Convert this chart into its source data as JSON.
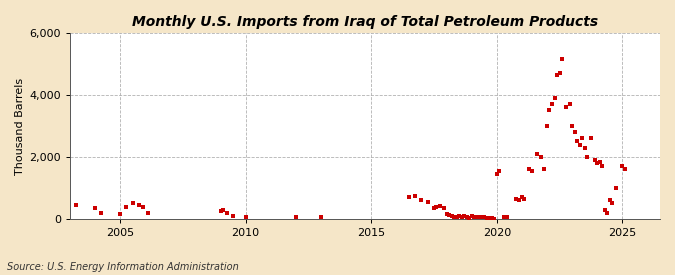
{
  "title": "Monthly U.S. Imports from Iraq of Total Petroleum Products",
  "ylabel": "Thousand Barrels",
  "source": "Source: U.S. Energy Information Administration",
  "background_color": "#f5e6c8",
  "plot_background_color": "#ffffff",
  "marker_color": "#cc0000",
  "xlim": [
    2003.0,
    2026.5
  ],
  "ylim": [
    0,
    6000
  ],
  "yticks": [
    0,
    2000,
    4000,
    6000
  ],
  "xticks": [
    2005,
    2010,
    2015,
    2020,
    2025
  ],
  "data_points": [
    [
      2003.25,
      450
    ],
    [
      2004.0,
      350
    ],
    [
      2004.25,
      200
    ],
    [
      2005.0,
      150
    ],
    [
      2005.25,
      400
    ],
    [
      2005.5,
      500
    ],
    [
      2005.75,
      450
    ],
    [
      2005.9,
      380
    ],
    [
      2006.1,
      200
    ],
    [
      2009.0,
      250
    ],
    [
      2009.1,
      300
    ],
    [
      2009.25,
      200
    ],
    [
      2009.5,
      100
    ],
    [
      2010.0,
      50
    ],
    [
      2012.0,
      50
    ],
    [
      2013.0,
      50
    ],
    [
      2016.5,
      700
    ],
    [
      2016.75,
      750
    ],
    [
      2017.0,
      600
    ],
    [
      2017.25,
      550
    ],
    [
      2017.5,
      350
    ],
    [
      2017.6,
      380
    ],
    [
      2017.75,
      420
    ],
    [
      2017.9,
      350
    ],
    [
      2018.0,
      150
    ],
    [
      2018.1,
      120
    ],
    [
      2018.2,
      80
    ],
    [
      2018.3,
      60
    ],
    [
      2018.4,
      50
    ],
    [
      2018.5,
      80
    ],
    [
      2018.6,
      50
    ],
    [
      2018.7,
      80
    ],
    [
      2018.8,
      50
    ],
    [
      2018.9,
      30
    ],
    [
      2019.0,
      80
    ],
    [
      2019.1,
      50
    ],
    [
      2019.2,
      50
    ],
    [
      2019.3,
      70
    ],
    [
      2019.4,
      60
    ],
    [
      2019.5,
      50
    ],
    [
      2019.6,
      40
    ],
    [
      2019.7,
      30
    ],
    [
      2019.8,
      20
    ],
    [
      2019.9,
      10
    ],
    [
      2020.0,
      1450
    ],
    [
      2020.08,
      1550
    ],
    [
      2020.3,
      50
    ],
    [
      2020.4,
      60
    ],
    [
      2020.75,
      650
    ],
    [
      2020.9,
      600
    ],
    [
      2021.0,
      700
    ],
    [
      2021.1,
      650
    ],
    [
      2021.3,
      1600
    ],
    [
      2021.4,
      1550
    ],
    [
      2021.6,
      2100
    ],
    [
      2021.75,
      2000
    ],
    [
      2021.9,
      1600
    ],
    [
      2022.0,
      3000
    ],
    [
      2022.1,
      3500
    ],
    [
      2022.2,
      3700
    ],
    [
      2022.3,
      3900
    ],
    [
      2022.4,
      4650
    ],
    [
      2022.5,
      4700
    ],
    [
      2022.6,
      5150
    ],
    [
      2022.75,
      3600
    ],
    [
      2022.9,
      3700
    ],
    [
      2023.0,
      3000
    ],
    [
      2023.1,
      2800
    ],
    [
      2023.2,
      2500
    ],
    [
      2023.3,
      2400
    ],
    [
      2023.4,
      2600
    ],
    [
      2023.5,
      2300
    ],
    [
      2023.6,
      2000
    ],
    [
      2023.75,
      2600
    ],
    [
      2023.9,
      1900
    ],
    [
      2024.0,
      1800
    ],
    [
      2024.1,
      1850
    ],
    [
      2024.2,
      1700
    ],
    [
      2024.3,
      300
    ],
    [
      2024.4,
      200
    ],
    [
      2024.5,
      600
    ],
    [
      2024.6,
      500
    ],
    [
      2024.75,
      1000
    ],
    [
      2025.0,
      1700
    ],
    [
      2025.1,
      1600
    ]
  ]
}
